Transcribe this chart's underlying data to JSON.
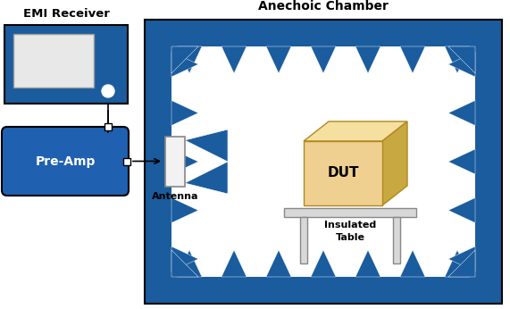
{
  "fig_width": 5.71,
  "fig_height": 3.46,
  "dpi": 100,
  "bg_color": "#ffffff",
  "blue_dark": "#1a5c9e",
  "blue_preamp": "#2060b0",
  "absorber_blue": "#1a5c9e",
  "title_emi": "EMI Receiver",
  "title_chamber": "Anechoic Chamber",
  "label_preamp": "Pre-Amp",
  "label_antenna": "Antenna",
  "label_dut": "DUT",
  "label_table1": "Insulated",
  "label_table2": "Table",
  "dut_front": "#f0d090",
  "dut_top": "#f5e0a0",
  "dut_side": "#c8a840",
  "dut_edge": "#b08820",
  "table_color": "#d8d8d8",
  "table_edge": "#888888"
}
